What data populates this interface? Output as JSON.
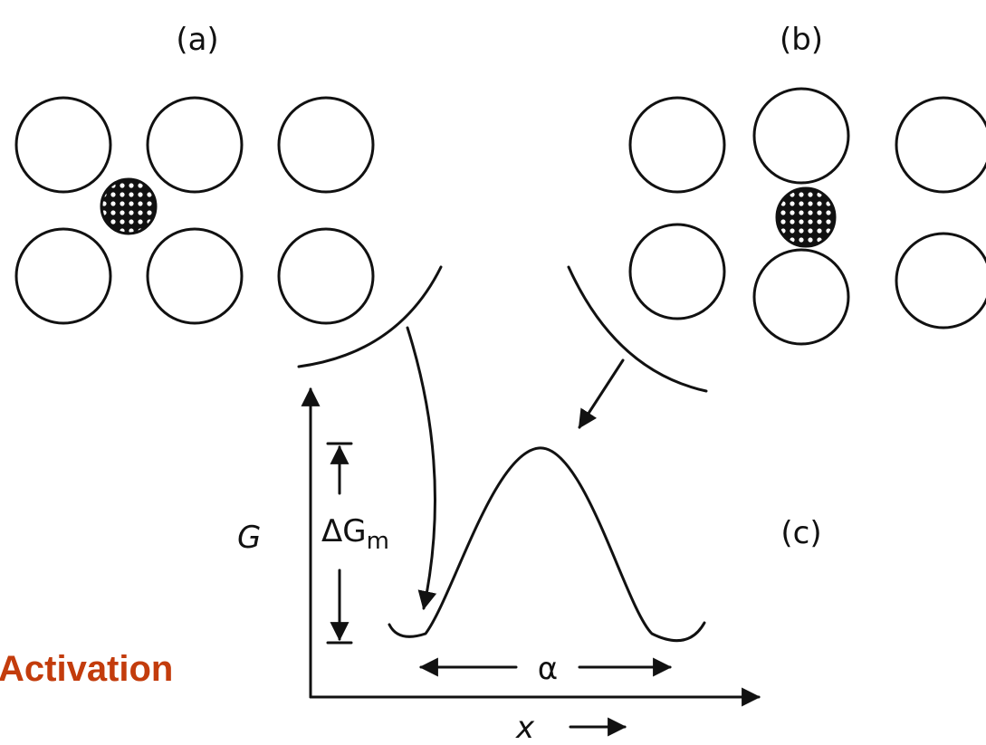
{
  "panels": {
    "a": "(a)",
    "b": "(b)",
    "c": "(c)"
  },
  "axes": {
    "y_label": "G",
    "x_label": "x"
  },
  "energy_barrier": {
    "main": "ΔG",
    "sub": "m"
  },
  "jump_distance": "α",
  "caption": "Activation"
}
